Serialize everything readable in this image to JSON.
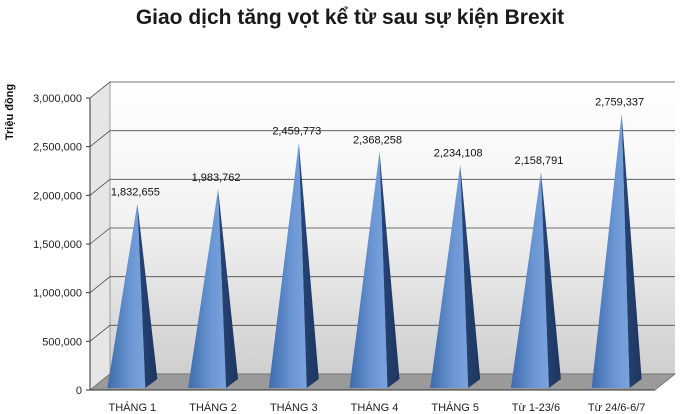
{
  "chart_data": {
    "type": "bar",
    "title": "Giao dịch tăng vọt kể từ sau sự kiện Brexit",
    "ylabel": "Triệu đồng",
    "xlabel": "",
    "categories": [
      "THÁNG 1",
      "THÁNG 2",
      "THÁNG 3",
      "THÁNG 4",
      "THÁNG 5",
      "Từ 1-23/6",
      "Từ 24/6-6/7"
    ],
    "values": [
      1832655,
      1983762,
      2459773,
      2368258,
      2234108,
      2158791,
      2759337
    ],
    "data_labels": [
      "1,832,655",
      "1,983,762",
      "2,459,773",
      "2,368,258",
      "2,234,108",
      "2,158,791",
      "2,759,337"
    ],
    "ylim": [
      0,
      3000000
    ],
    "yticks": [
      0,
      500000,
      1000000,
      1500000,
      2000000,
      2500000,
      3000000
    ],
    "ytick_labels": [
      "0",
      "500,000",
      "1,000,000",
      "1,500,000",
      "2,000,000",
      "2,500,000",
      "3,000,000"
    ],
    "grid": true,
    "legend": "none",
    "colors": {
      "bar_front": "#5b88c8",
      "bar_side": "#2c4f86",
      "floor": "#9a9a9a",
      "grid": "#4a4a4a"
    }
  }
}
